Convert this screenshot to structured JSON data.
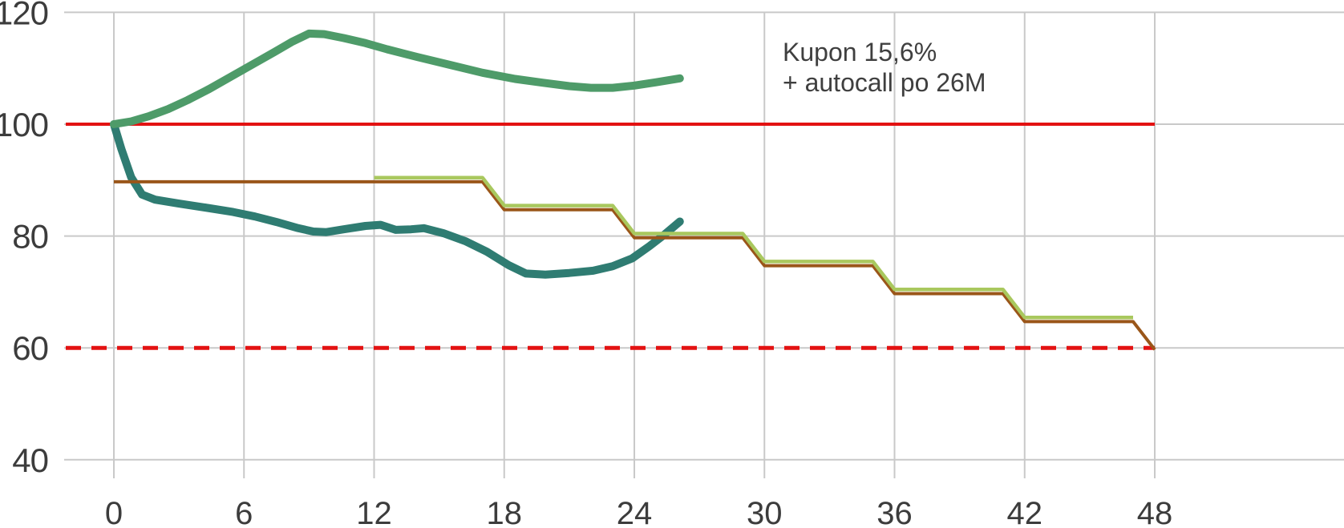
{
  "chart_data": {
    "type": "line",
    "title": "",
    "xlabel": "",
    "ylabel": "",
    "x_axis": {
      "unit": "months",
      "range": [
        0,
        48
      ],
      "ticks": [
        0,
        6,
        12,
        18,
        24,
        30,
        36,
        42,
        48
      ]
    },
    "y_axis": {
      "range": [
        40,
        120
      ],
      "ticks": [
        120,
        100,
        80,
        60,
        40
      ]
    },
    "grid": true,
    "legend": "none",
    "annotation": {
      "lines": [
        "Kupon 15,6%",
        "+ autocall po 26M"
      ]
    },
    "ref_lines": [
      {
        "name": "initial-level-100",
        "value": 100,
        "style": "solid",
        "color": "#e31212",
        "width": 4,
        "dash": null
      },
      {
        "name": "barrier-level-60",
        "value": 60,
        "style": "dashed",
        "color": "#e31212",
        "width": 5,
        "dash": [
          19,
          13
        ]
      }
    ],
    "series": [
      {
        "name": "underlying-maturity-scenario",
        "color": "#2f7c72",
        "width": 10,
        "render_offset": 0,
        "points": [
          [
            0,
            100
          ],
          [
            0.35,
            95.5
          ],
          [
            0.8,
            90.5
          ],
          [
            1.3,
            87.4
          ],
          [
            1.9,
            86.5
          ],
          [
            3,
            85.8
          ],
          [
            4.2,
            85.1
          ],
          [
            5.5,
            84.3
          ],
          [
            6.5,
            83.5
          ],
          [
            7.5,
            82.5
          ],
          [
            8.5,
            81.4
          ],
          [
            9.2,
            80.8
          ],
          [
            9.8,
            80.7
          ],
          [
            10.6,
            81.2
          ],
          [
            11.6,
            81.8
          ],
          [
            12.3,
            82
          ],
          [
            13,
            81.1
          ],
          [
            13.7,
            81.2
          ],
          [
            14.3,
            81.4
          ],
          [
            15.2,
            80.5
          ],
          [
            16.2,
            79.1
          ],
          [
            17.2,
            77.2
          ],
          [
            18.2,
            74.8
          ],
          [
            19,
            73.3
          ],
          [
            19.9,
            73.1
          ],
          [
            21,
            73.4
          ],
          [
            22.1,
            73.8
          ],
          [
            23,
            74.6
          ],
          [
            23.9,
            76
          ],
          [
            24.7,
            78.2
          ],
          [
            25.4,
            80.3
          ],
          [
            26.1,
            82.6
          ]
        ]
      },
      {
        "name": "underlying-autocall-scenario",
        "color": "#4e9b69",
        "width": 10,
        "render_offset": 0,
        "points": [
          [
            0,
            100
          ],
          [
            0.8,
            100.5
          ],
          [
            1.6,
            101.4
          ],
          [
            2.5,
            102.7
          ],
          [
            3.4,
            104.3
          ],
          [
            4.4,
            106.3
          ],
          [
            5.4,
            108.5
          ],
          [
            6.4,
            110.7
          ],
          [
            7.4,
            112.9
          ],
          [
            8.2,
            114.7
          ],
          [
            9,
            116.2
          ],
          [
            9.7,
            116.1
          ],
          [
            10.6,
            115.4
          ],
          [
            11.6,
            114.5
          ],
          [
            12.6,
            113.4
          ],
          [
            14,
            112
          ],
          [
            15.5,
            110.6
          ],
          [
            17,
            109.2
          ],
          [
            18.5,
            108.1
          ],
          [
            19.8,
            107.4
          ],
          [
            21,
            106.8
          ],
          [
            22,
            106.5
          ],
          [
            23,
            106.5
          ],
          [
            24,
            106.9
          ],
          [
            25,
            107.5
          ],
          [
            26.1,
            108.2
          ]
        ]
      },
      {
        "name": "coupon-barrier-maturity",
        "color": "#9a5619",
        "width": 4,
        "render_offset": -0.3,
        "points": [
          [
            0,
            90
          ],
          [
            17,
            90
          ],
          [
            18,
            85
          ],
          [
            23,
            85
          ],
          [
            24,
            80
          ],
          [
            29,
            80
          ],
          [
            30,
            75
          ],
          [
            35,
            75
          ],
          [
            36,
            70
          ],
          [
            41,
            70
          ],
          [
            42,
            65
          ],
          [
            47,
            65
          ],
          [
            48,
            60
          ]
        ]
      },
      {
        "name": "coupon-barrier-autocall",
        "color": "#a9c85e",
        "width": 4.5,
        "render_offset": 0.45,
        "points": [
          [
            12,
            90
          ],
          [
            17,
            90
          ],
          [
            18,
            85
          ],
          [
            23,
            85
          ],
          [
            24,
            80
          ],
          [
            29,
            80
          ],
          [
            30,
            75
          ],
          [
            35,
            75
          ],
          [
            36,
            70
          ],
          [
            41,
            70
          ],
          [
            42,
            65
          ],
          [
            47,
            65
          ]
        ]
      }
    ],
    "colors": {
      "grid": "#c9c9c9",
      "text": "#3c3c3c",
      "background": "#ffffff",
      "red": "#e31212"
    }
  }
}
